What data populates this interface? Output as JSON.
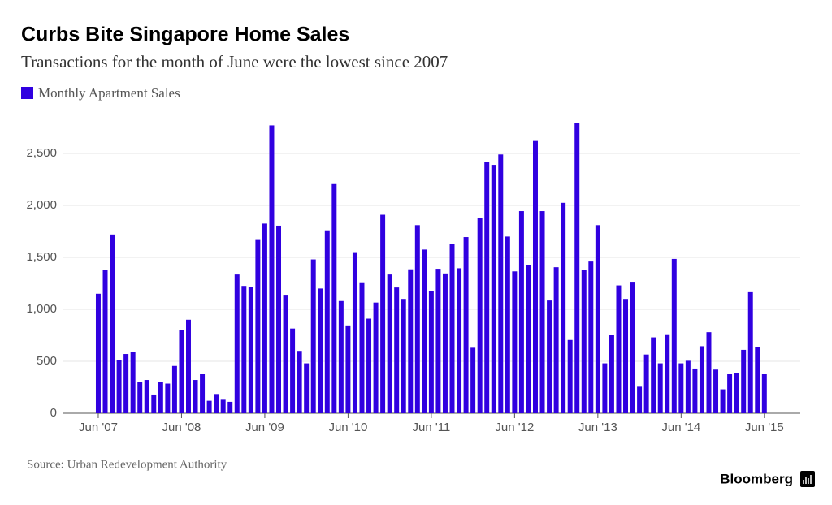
{
  "chart_data": {
    "type": "bar",
    "title": "Curbs Bite Singapore Home Sales",
    "subtitle": "Transactions for the month of June were the lowest since 2007",
    "source": "Source: Urban Redevelopment Authority",
    "brand": "Bloomberg",
    "categories": [
      "Jun '07",
      null,
      null,
      null,
      null,
      null,
      null,
      null,
      null,
      null,
      null,
      null,
      "Jun '08",
      null,
      null,
      null,
      null,
      null,
      null,
      null,
      null,
      null,
      null,
      null,
      "Jun '09",
      null,
      null,
      null,
      null,
      null,
      null,
      null,
      null,
      null,
      null,
      null,
      "Jun '10",
      null,
      null,
      null,
      null,
      null,
      null,
      null,
      null,
      null,
      null,
      null,
      "Jun '11",
      null,
      null,
      null,
      null,
      null,
      null,
      null,
      null,
      null,
      null,
      null,
      "Jun '12",
      null,
      null,
      null,
      null,
      null,
      null,
      null,
      null,
      null,
      null,
      null,
      "Jun '13",
      null,
      null,
      null,
      null,
      null,
      null,
      null,
      null,
      null,
      null,
      null,
      "Jun '14",
      null,
      null,
      null,
      null,
      null,
      null,
      null,
      null,
      null,
      null,
      null,
      "Jun '15"
    ],
    "series": [
      {
        "name": "Monthly Apartment Sales",
        "color": "#3000e0",
        "values": [
          1150,
          1375,
          1720,
          510,
          570,
          590,
          300,
          320,
          180,
          300,
          285,
          455,
          800,
          900,
          320,
          375,
          120,
          185,
          130,
          110,
          1335,
          1225,
          1215,
          1675,
          1825,
          2770,
          1805,
          1140,
          815,
          600,
          480,
          1480,
          1200,
          1760,
          2205,
          1080,
          845,
          1550,
          1260,
          910,
          1065,
          1910,
          1335,
          1210,
          1100,
          1385,
          1810,
          1575,
          1175,
          1390,
          1345,
          1630,
          1395,
          1695,
          630,
          1875,
          2415,
          2390,
          2490,
          1700,
          1365,
          1945,
          1425,
          2620,
          1945,
          1085,
          1405,
          2025,
          705,
          2790,
          1375,
          1460,
          1810,
          480,
          750,
          1230,
          1100,
          1265,
          255,
          565,
          730,
          480,
          760,
          1485,
          480,
          505,
          430,
          645,
          780,
          420,
          230,
          375,
          385,
          610,
          1165,
          640,
          375
        ]
      }
    ],
    "ylim": [
      0,
      2800
    ],
    "yticks": [
      0,
      500,
      {
        "value": 1000,
        "label": "1,000"
      },
      {
        "value": 1500,
        "label": "1,500"
      },
      {
        "value": 2000,
        "label": "2,000"
      },
      {
        "value": 2500,
        "label": "2,500"
      }
    ],
    "grid": true
  }
}
